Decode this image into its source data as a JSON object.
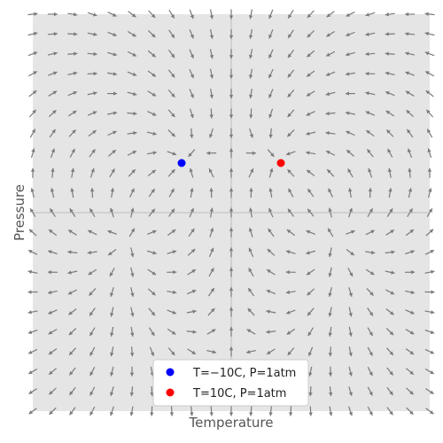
{
  "chart_data": {
    "type": "vector_field",
    "xlabel": "Temperature",
    "ylabel": "Pressure",
    "xlim": [
      -10,
      10
    ],
    "ylim": [
      -10,
      10
    ],
    "grid": false,
    "legend_position": "lower-center",
    "field": {
      "x_values": [
        -10,
        -9,
        -8,
        -7,
        -6,
        -5,
        -4,
        -3,
        -2,
        -1,
        0,
        1,
        2,
        3,
        4,
        5,
        6,
        7,
        8,
        9,
        10
      ],
      "y_values": [
        -10,
        -9,
        -8,
        -7,
        -6,
        -5,
        -4,
        -3,
        -2,
        -1,
        0,
        1,
        2,
        3,
        4,
        5,
        6,
        7,
        8,
        9,
        10
      ],
      "sinks": [
        [
          -2.5,
          2.5
        ],
        [
          2.5,
          2.5
        ]
      ],
      "sources": [
        [
          -5,
          -1
        ],
        [
          5,
          -1
        ]
      ],
      "arrow_color": "#7a7a7a"
    },
    "series": [
      {
        "name": "T=−10C, P=1atm",
        "x": [
          -2.5
        ],
        "y": [
          2.5
        ],
        "color": "#0000ff"
      },
      {
        "name": "T=10C, P=1atm",
        "x": [
          2.5
        ],
        "y": [
          2.5
        ],
        "color": "#ff0000"
      }
    ],
    "colors": {
      "background": "#e5e5e5",
      "axis_line": "#bdbdbd"
    }
  }
}
